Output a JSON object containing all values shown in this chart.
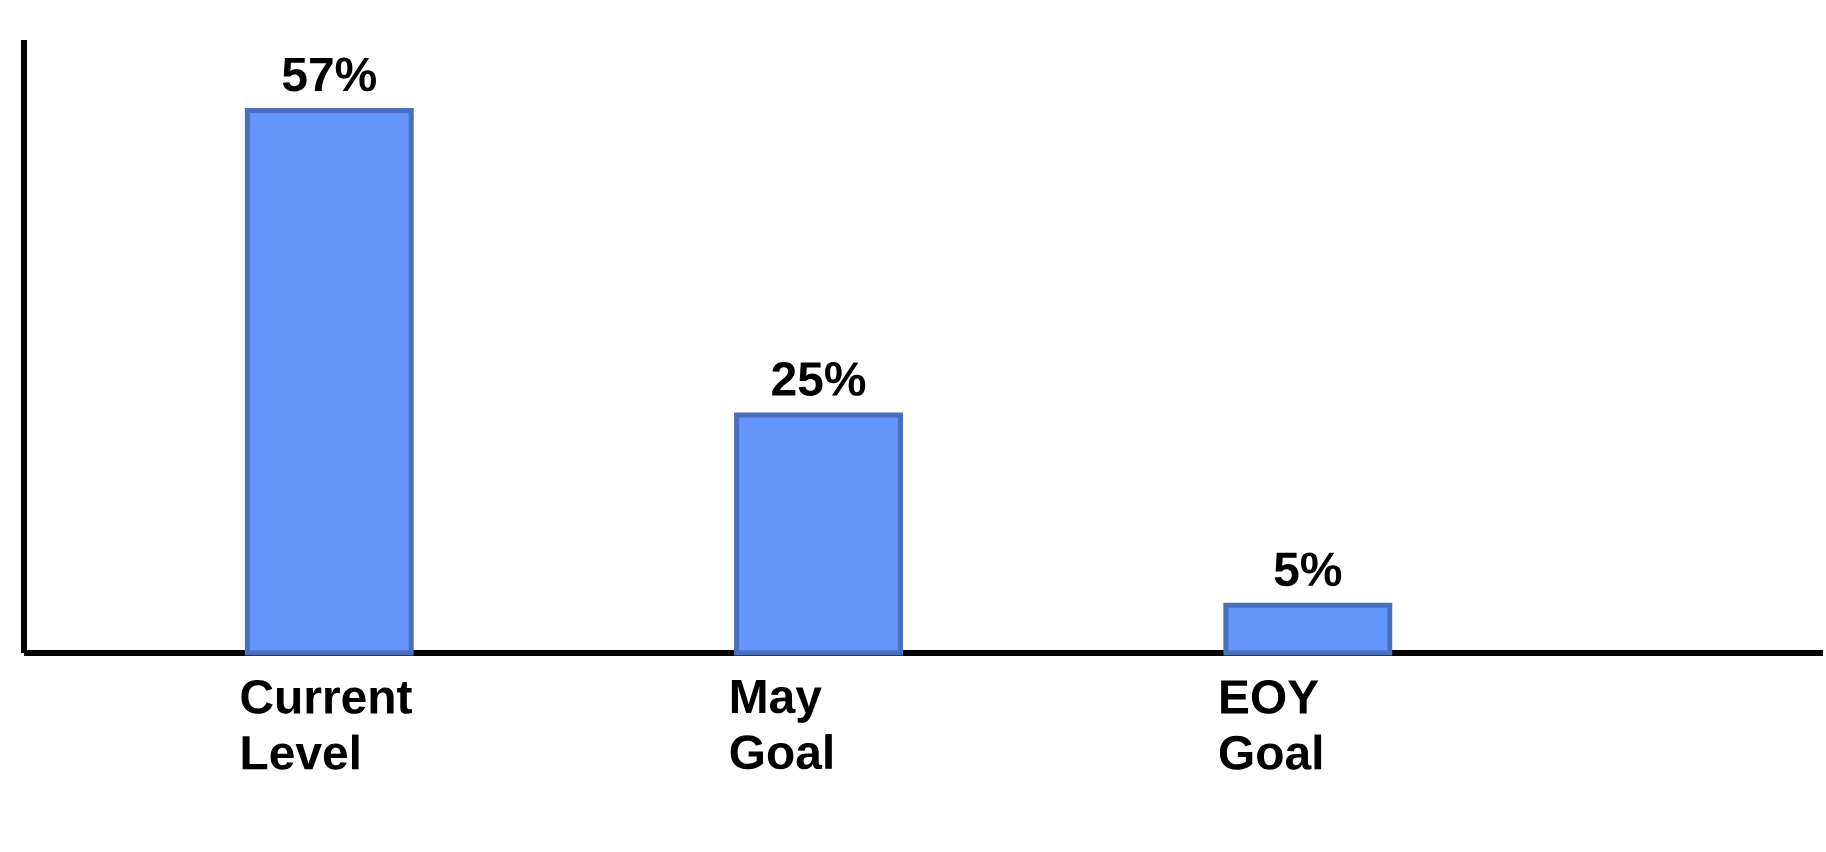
{
  "chart_data": {
    "type": "bar",
    "categories": [
      "Current Level",
      "May Goal",
      "EOY Goal"
    ],
    "values": [
      57,
      25,
      5
    ],
    "value_labels": [
      "57%",
      "25%",
      "5%"
    ],
    "color": "#6495fa"
  }
}
